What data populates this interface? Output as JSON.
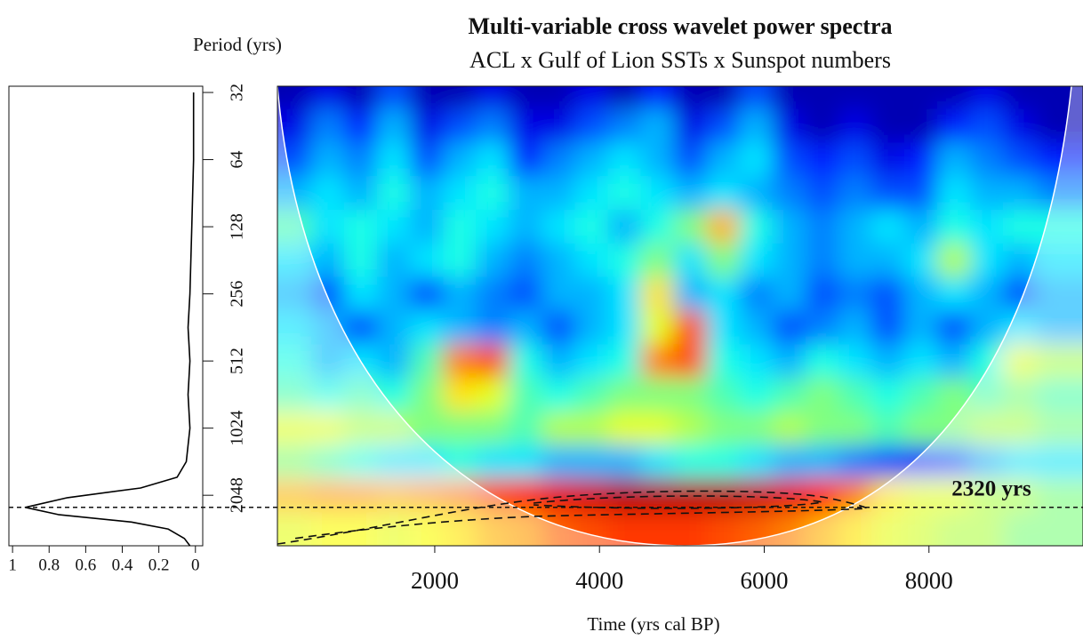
{
  "chart_data": [
    {
      "type": "heatmap",
      "title": "Multi-variable cross wavelet power spectra",
      "subtitle": "ACL x Gulf of  Lion SSTs x Sunspot numbers",
      "xlabel": "Time (yrs cal BP)",
      "ylabel": "Period (yrs)",
      "colormap": "jet",
      "x": [
        300,
        700,
        1100,
        1500,
        1900,
        2300,
        2700,
        3100,
        3500,
        3900,
        4300,
        4700,
        5100,
        5500,
        5900,
        6300,
        6700,
        7100,
        7500,
        7900,
        8300,
        8700,
        9100,
        9500
      ],
      "y": [
        32,
        45,
        64,
        90,
        128,
        181,
        256,
        362,
        512,
        724,
        1024,
        1448,
        2048,
        2896
      ],
      "values": [
        [
          0.05,
          0.1,
          0.05,
          0.2,
          0.05,
          0.05,
          0.1,
          0.05,
          0.05,
          0.1,
          0.05,
          0.15,
          0.05,
          0.05,
          0.2,
          0.05,
          0.05,
          0.05,
          0.05,
          0.05,
          0.05,
          0.1,
          0.05,
          0.05
        ],
        [
          0.1,
          0.25,
          0.15,
          0.3,
          0.1,
          0.2,
          0.25,
          0.1,
          0.1,
          0.2,
          0.25,
          0.3,
          0.1,
          0.2,
          0.3,
          0.1,
          0.05,
          0.1,
          0.05,
          0.05,
          0.15,
          0.2,
          0.1,
          0.05
        ],
        [
          0.2,
          0.3,
          0.25,
          0.35,
          0.2,
          0.3,
          0.35,
          0.15,
          0.25,
          0.3,
          0.35,
          0.3,
          0.2,
          0.3,
          0.35,
          0.2,
          0.15,
          0.2,
          0.1,
          0.15,
          0.3,
          0.25,
          0.2,
          0.15
        ],
        [
          0.3,
          0.35,
          0.3,
          0.4,
          0.3,
          0.35,
          0.4,
          0.3,
          0.3,
          0.35,
          0.4,
          0.35,
          0.3,
          0.35,
          0.3,
          0.25,
          0.2,
          0.25,
          0.2,
          0.2,
          0.35,
          0.3,
          0.3,
          0.25
        ],
        [
          0.45,
          0.35,
          0.4,
          0.35,
          0.3,
          0.4,
          0.35,
          0.3,
          0.35,
          0.4,
          0.3,
          0.4,
          0.5,
          0.7,
          0.4,
          0.3,
          0.25,
          0.3,
          0.35,
          0.3,
          0.4,
          0.35,
          0.4,
          0.4
        ],
        [
          0.35,
          0.3,
          0.4,
          0.3,
          0.35,
          0.4,
          0.3,
          0.25,
          0.3,
          0.35,
          0.4,
          0.5,
          0.35,
          0.5,
          0.35,
          0.3,
          0.25,
          0.3,
          0.3,
          0.35,
          0.55,
          0.35,
          0.3,
          0.35
        ],
        [
          0.3,
          0.2,
          0.35,
          0.3,
          0.2,
          0.3,
          0.25,
          0.2,
          0.3,
          0.3,
          0.35,
          0.65,
          0.3,
          0.35,
          0.25,
          0.3,
          0.2,
          0.25,
          0.2,
          0.3,
          0.35,
          0.3,
          0.2,
          0.3
        ],
        [
          0.35,
          0.3,
          0.2,
          0.3,
          0.35,
          0.3,
          0.25,
          0.3,
          0.2,
          0.3,
          0.35,
          0.6,
          0.8,
          0.35,
          0.3,
          0.2,
          0.25,
          0.3,
          0.2,
          0.3,
          0.2,
          0.3,
          0.35,
          0.3
        ],
        [
          0.4,
          0.3,
          0.35,
          0.3,
          0.45,
          0.75,
          0.8,
          0.4,
          0.3,
          0.35,
          0.4,
          0.75,
          0.8,
          0.4,
          0.35,
          0.3,
          0.4,
          0.35,
          0.3,
          0.35,
          0.3,
          0.4,
          0.6,
          0.55
        ],
        [
          0.45,
          0.4,
          0.45,
          0.4,
          0.5,
          0.65,
          0.6,
          0.45,
          0.4,
          0.45,
          0.5,
          0.5,
          0.5,
          0.45,
          0.4,
          0.45,
          0.5,
          0.45,
          0.4,
          0.45,
          0.5,
          0.45,
          0.5,
          0.45
        ],
        [
          0.6,
          0.6,
          0.55,
          0.55,
          0.5,
          0.5,
          0.5,
          0.45,
          0.55,
          0.55,
          0.6,
          0.6,
          0.55,
          0.5,
          0.5,
          0.55,
          0.5,
          0.5,
          0.45,
          0.5,
          0.5,
          0.55,
          0.55,
          0.5
        ],
        [
          0.5,
          0.45,
          0.4,
          0.35,
          0.35,
          0.4,
          0.35,
          0.35,
          0.3,
          0.3,
          0.3,
          0.35,
          0.4,
          0.4,
          0.35,
          0.3,
          0.3,
          0.25,
          0.2,
          0.15,
          0.2,
          0.3,
          0.35,
          0.35
        ],
        [
          0.7,
          0.72,
          0.72,
          0.7,
          0.72,
          0.75,
          0.8,
          0.85,
          0.9,
          0.92,
          0.95,
          0.95,
          0.95,
          0.95,
          0.93,
          0.9,
          0.85,
          0.75,
          0.65,
          0.6,
          0.6,
          0.55,
          0.55,
          0.5
        ],
        [
          0.6,
          0.62,
          0.62,
          0.6,
          0.62,
          0.65,
          0.7,
          0.72,
          0.78,
          0.8,
          0.82,
          0.82,
          0.82,
          0.8,
          0.78,
          0.75,
          0.7,
          0.65,
          0.6,
          0.58,
          0.55,
          0.55,
          0.5,
          0.5
        ]
      ],
      "xlim": [
        90,
        9870
      ],
      "xticks": [
        2000,
        4000,
        6000,
        8000
      ],
      "ylim": [
        30,
        3450
      ],
      "yticks": [
        32,
        64,
        128,
        256,
        512,
        1024,
        2048
      ],
      "log_base": 2,
      "y_inverted": true,
      "annotation": {
        "text": "2320 yrs",
        "period": 2320
      }
    },
    {
      "type": "line",
      "orientation": "horizontal",
      "color": "#000000",
      "y": [
        32,
        64,
        128,
        256,
        362,
        512,
        724,
        1024,
        1448,
        1700,
        1900,
        2100,
        2320,
        2500,
        2700,
        2900,
        3200,
        3450
      ],
      "values": [
        0.01,
        0.01,
        0.02,
        0.03,
        0.04,
        0.03,
        0.04,
        0.03,
        0.05,
        0.1,
        0.3,
        0.7,
        0.93,
        0.75,
        0.35,
        0.15,
        0.06,
        0.03
      ],
      "xlim": [
        1.02,
        -0.04
      ],
      "xticks": [
        1,
        0.8,
        0.6,
        0.4,
        0.2,
        0
      ],
      "ylim": [
        30,
        3450
      ],
      "log_base": 2,
      "y_inverted": true
    }
  ]
}
